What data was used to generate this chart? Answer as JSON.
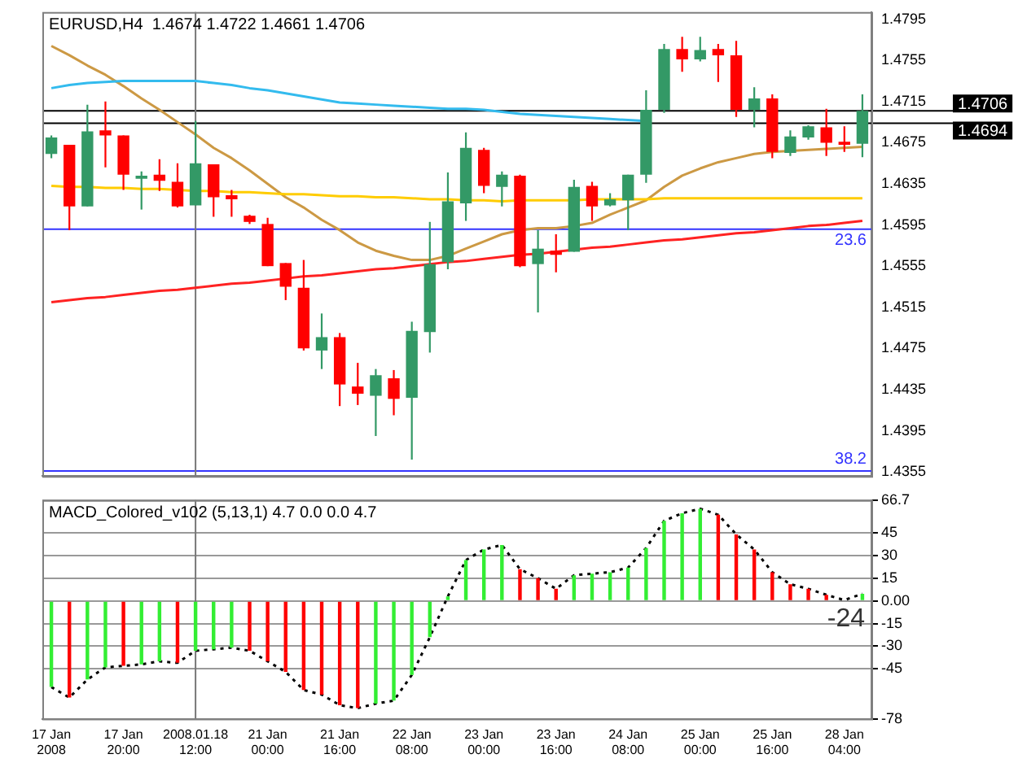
{
  "chart_data": [
    {
      "type": "candlestick",
      "title": "EURUSD,H4  1.4674 1.4722 1.4661 1.4706",
      "categories": [
        "17 Jan 2008",
        null,
        null,
        null,
        "17 Jan 20:00",
        null,
        null,
        null,
        "2008.01.18 12:00",
        null,
        null,
        null,
        "21 Jan 00:00",
        null,
        null,
        null,
        "21 Jan 16:00",
        null,
        null,
        null,
        "22 Jan 08:00",
        null,
        null,
        null,
        "23 Jan 00:00",
        null,
        null,
        null,
        "23 Jan 16:00",
        null,
        null,
        null,
        "24 Jan 08:00",
        null,
        null,
        null,
        "25 Jan 00:00",
        null,
        null,
        null,
        "25 Jan 16:00",
        null,
        null,
        null,
        "28 Jan 04:00",
        null
      ],
      "ohlc": [
        [
          1.4664,
          1.4682,
          1.466,
          1.468
        ],
        [
          1.4673,
          1.4673,
          1.459,
          1.4613
        ],
        [
          1.4613,
          1.4712,
          1.4613,
          1.4686
        ],
        [
          1.4687,
          1.4715,
          1.4651,
          1.4682
        ],
        [
          1.4682,
          1.4682,
          1.4629,
          1.4644
        ],
        [
          1.464,
          1.4647,
          1.461,
          1.4643
        ],
        [
          1.4644,
          1.4659,
          1.4628,
          1.4638
        ],
        [
          1.4637,
          1.4655,
          1.4612,
          1.4613
        ],
        [
          1.4614,
          1.4696,
          1.4614,
          1.4655
        ],
        [
          1.4654,
          1.4654,
          1.4603,
          1.4622
        ],
        [
          1.4624,
          1.4629,
          1.4603,
          1.462
        ],
        [
          1.4604,
          1.4605,
          1.4596,
          1.4598
        ],
        [
          1.4596,
          1.4602,
          1.4555,
          1.4555
        ],
        [
          1.4558,
          1.4558,
          1.4522,
          1.4535
        ],
        [
          1.4534,
          1.4561,
          1.4473,
          1.4475
        ],
        [
          1.4473,
          1.4509,
          1.4455,
          1.4486
        ],
        [
          1.4486,
          1.449,
          1.4419,
          1.444
        ],
        [
          1.4438,
          1.4461,
          1.442,
          1.4431
        ],
        [
          1.4429,
          1.4455,
          1.439,
          1.4449
        ],
        [
          1.4446,
          1.4454,
          1.441,
          1.4426
        ],
        [
          1.4427,
          1.4501,
          1.4367,
          1.4492
        ],
        [
          1.4491,
          1.4598,
          1.4471,
          1.4557
        ],
        [
          1.4559,
          1.4646,
          1.4552,
          1.4618
        ],
        [
          1.4616,
          1.4685,
          1.4599,
          1.467
        ],
        [
          1.4668,
          1.467,
          1.4626,
          1.4633
        ],
        [
          1.4632,
          1.4647,
          1.4613,
          1.4644
        ],
        [
          1.4643,
          1.4644,
          1.4554,
          1.4555
        ],
        [
          1.4557,
          1.459,
          1.451,
          1.4572
        ],
        [
          1.457,
          1.4586,
          1.4549,
          1.4566
        ],
        [
          1.4569,
          1.4639,
          1.4569,
          1.4632
        ],
        [
          1.4633,
          1.4637,
          1.4599,
          1.4613
        ],
        [
          1.4614,
          1.4626,
          1.4613,
          1.462
        ],
        [
          1.4619,
          1.4644,
          1.459,
          1.4644
        ],
        [
          1.4644,
          1.4726,
          1.4636,
          1.4707
        ],
        [
          1.4707,
          1.4771,
          1.4704,
          1.4766
        ],
        [
          1.4766,
          1.4778,
          1.4744,
          1.4756
        ],
        [
          1.4756,
          1.4778,
          1.4754,
          1.4765
        ],
        [
          1.4766,
          1.4771,
          1.4734,
          1.476
        ],
        [
          1.476,
          1.4774,
          1.47,
          1.4707
        ],
        [
          1.4707,
          1.4729,
          1.469,
          1.4718
        ],
        [
          1.4718,
          1.4722,
          1.466,
          1.4666
        ],
        [
          1.4665,
          1.4687,
          1.4662,
          1.4681
        ],
        [
          1.468,
          1.4692,
          1.4678,
          1.4691
        ],
        [
          1.469,
          1.4708,
          1.4662,
          1.4675
        ],
        [
          1.4676,
          1.4691,
          1.4666,
          1.4673
        ],
        [
          1.4674,
          1.4722,
          1.4661,
          1.4706
        ]
      ],
      "colors": [
        "#339966",
        "#ff0000",
        "#339966",
        "#ff0000",
        "#ff0000",
        "#339966",
        "#ff0000",
        "#ff0000",
        "#339966",
        "#ff0000",
        "#ff0000",
        "#ff0000",
        "#ff0000",
        "#ff0000",
        "#ff0000",
        "#339966",
        "#ff0000",
        "#ff0000",
        "#339966",
        "#ff0000",
        "#339966",
        "#339966",
        "#339966",
        "#339966",
        "#ff0000",
        "#339966",
        "#ff0000",
        "#339966",
        "#ff0000",
        "#339966",
        "#ff0000",
        "#339966",
        "#339966",
        "#339966",
        "#339966",
        "#ff0000",
        "#339966",
        "#ff0000",
        "#ff0000",
        "#339966",
        "#ff0000",
        "#339966",
        "#339966",
        "#ff0000",
        "#ff0000",
        "#339966"
      ],
      "series": [
        {
          "type": "line",
          "color": "#ffcc00",
          "values": [
            1.4633,
            1.4632,
            1.4632,
            1.4631,
            1.4631,
            1.463,
            1.463,
            1.4629,
            1.4628,
            1.4628,
            1.4627,
            1.4627,
            1.4626,
            1.4625,
            1.4625,
            1.4624,
            1.4623,
            1.4623,
            1.4622,
            1.4622,
            1.4621,
            1.462,
            1.462,
            1.4619,
            1.4619,
            1.4618,
            1.4619,
            1.4619,
            1.4619,
            1.4619,
            1.462,
            1.462,
            1.462,
            1.462,
            1.4621,
            1.4621,
            1.4621,
            1.4621,
            1.4621,
            1.4621,
            1.4621,
            1.4621,
            1.4621,
            1.4621,
            1.4621,
            1.4621
          ]
        },
        {
          "type": "line",
          "color": "#33bbee",
          "values": [
            1.4728,
            1.4731,
            1.4733,
            1.4734,
            1.4735,
            1.4735,
            1.4735,
            1.4735,
            1.4735,
            1.4733,
            1.4731,
            1.4728,
            1.4726,
            1.4723,
            1.472,
            1.4717,
            1.4714,
            1.4713,
            1.4712,
            1.4711,
            1.471,
            1.4709,
            1.4708,
            1.4708,
            1.4707,
            1.4705,
            1.4703,
            1.4702,
            1.4701,
            1.47,
            1.4699,
            1.4698,
            1.4697,
            1.4696,
            null,
            null,
            null,
            null,
            null,
            null,
            null,
            null,
            null,
            null,
            null,
            null
          ]
        },
        {
          "type": "line",
          "color": "#cc9944",
          "values": [
            1.4769,
            1.476,
            1.475,
            1.4741,
            1.473,
            1.4718,
            1.4707,
            1.4695,
            1.4683,
            1.467,
            1.466,
            1.4648,
            1.4635,
            1.4622,
            1.4612,
            1.46,
            1.459,
            1.4578,
            1.457,
            1.4565,
            1.4561,
            1.4561,
            1.4565,
            1.4572,
            1.4579,
            1.4586,
            1.459,
            1.4592,
            1.4592,
            1.4594,
            1.4597,
            1.4605,
            1.4612,
            1.4619,
            1.4632,
            1.4643,
            1.465,
            1.4656,
            1.466,
            1.4664,
            1.4666,
            1.4667,
            1.4668,
            1.4669,
            1.467,
            1.4671
          ]
        },
        {
          "type": "line",
          "color": "#ff2222",
          "values": [
            1.452,
            1.4522,
            1.4524,
            1.4525,
            1.4527,
            1.4529,
            1.4531,
            1.4532,
            1.4534,
            1.4536,
            1.4538,
            1.4539,
            1.4541,
            1.4543,
            1.4545,
            1.4546,
            1.4548,
            1.455,
            1.4552,
            1.4553,
            1.4555,
            1.4557,
            1.4559,
            1.456,
            1.4562,
            1.4564,
            1.4566,
            1.4567,
            1.4569,
            1.4571,
            1.4573,
            1.4574,
            1.4576,
            1.4578,
            1.458,
            1.4581,
            1.4583,
            1.4585,
            1.4587,
            1.4588,
            1.459,
            1.4592,
            1.4594,
            1.4595,
            1.4597,
            1.4599
          ]
        }
      ],
      "ylim": [
        1.4351,
        1.4802
      ],
      "yticks": [
        1.4355,
        1.4395,
        1.4435,
        1.4475,
        1.4515,
        1.4555,
        1.4595,
        1.4635,
        1.4675,
        1.4715,
        1.4755,
        1.4795
      ],
      "ref_lines": [
        {
          "axis": "y",
          "value": 1.4706,
          "label": "1.4706",
          "color": "#000000"
        },
        {
          "axis": "y",
          "value": 1.4694,
          "label": "1.4694",
          "color": "#000000"
        },
        {
          "axis": "y",
          "value": 1.4591,
          "color": "#3333ff"
        },
        {
          "axis": "y",
          "value": 1.4356,
          "color": "#3333ff"
        },
        {
          "axis": "x",
          "value": "2008.01.18 12:00",
          "color": "#777777"
        }
      ],
      "annotations": [
        {
          "text": "23.6",
          "y": 1.4591
        },
        {
          "text": "38.2",
          "y": 1.4356
        }
      ],
      "tick_labels": "y",
      "legend": false,
      "grid": false
    },
    {
      "type": "bar",
      "title": "MACD_Colored_v102 (5,13,1) 4.7 0.0 0.0 4.7",
      "categories": [
        "17 Jan 2008",
        null,
        null,
        null,
        "17 Jan 20:00",
        null,
        null,
        null,
        "2008.01.18 12:00",
        null,
        null,
        null,
        "21 Jan 00:00",
        null,
        null,
        null,
        "21 Jan 16:00",
        null,
        null,
        null,
        "22 Jan 08:00",
        null,
        null,
        null,
        "23 Jan 00:00",
        null,
        null,
        null,
        "23 Jan 16:00",
        null,
        null,
        null,
        "24 Jan 08:00",
        null,
        null,
        null,
        "25 Jan 00:00",
        null,
        null,
        null,
        "25 Jan 16:00",
        null,
        null,
        null,
        "28 Jan 04:00",
        null
      ],
      "series": [
        {
          "type": "bar",
          "colors": [
            "#33ee33",
            "#ff0000",
            "#33ee33",
            "#33ee33",
            "#ff0000",
            "#33ee33",
            "#33ee33",
            "#ff0000",
            "#33ee33",
            "#33ee33",
            "#33ee33",
            "#ff0000",
            "#ff0000",
            "#ff0000",
            "#ff0000",
            "#ff0000",
            "#ff0000",
            "#ff0000",
            "#33ee33",
            "#33ee33",
            "#33ee33",
            "#33ee33",
            "#33ee33",
            "#33ee33",
            "#33ee33",
            "#33ee33",
            "#ff0000",
            "#ff0000",
            "#ff0000",
            "#33ee33",
            "#33ee33",
            "#33ee33",
            "#33ee33",
            "#33ee33",
            "#33ee33",
            "#33ee33",
            "#33ee33",
            "#ff0000",
            "#ff0000",
            "#ff0000",
            "#ff0000",
            "#ff0000",
            "#ff0000",
            "#ff0000",
            "#ff0000",
            "#33ee33"
          ],
          "values": [
            -57,
            -64,
            -52,
            -44,
            -43,
            -42,
            -40,
            -41,
            -33,
            -32,
            -31,
            -33,
            -40,
            -47,
            -59,
            -62,
            -69,
            -71,
            -68,
            -66,
            -49,
            -24,
            3,
            27,
            34,
            37,
            21,
            15,
            8,
            17,
            18,
            19,
            22,
            35,
            53,
            58,
            61,
            57,
            44,
            34,
            19,
            11,
            8,
            4,
            null,
            4.7
          ]
        },
        {
          "type": "line",
          "color": "#000000",
          "line_style": "dotted",
          "values": [
            -57,
            -64,
            -52,
            -44,
            -43,
            -42,
            -40,
            -41,
            -33,
            -32,
            -31,
            -33,
            -40,
            -47,
            -59,
            -62,
            -69,
            -71,
            -68,
            -66,
            -49,
            -24,
            3,
            27,
            34,
            37,
            21,
            15,
            8,
            17,
            18,
            19,
            22,
            35,
            53,
            58,
            61,
            57,
            44,
            34,
            19,
            11,
            8,
            4,
            0.5,
            4.7
          ]
        }
      ],
      "ylim": [
        -78,
        66.7
      ],
      "yticks": [
        -78,
        -45,
        -30,
        -15,
        {
          "value": 0,
          "label": "0.00"
        },
        15,
        30,
        45,
        66.7
      ],
      "ref_lines": [
        {
          "axis": "x",
          "value": "2008.01.18 12:00",
          "color": "#777777"
        }
      ],
      "annotations": [
        "-24"
      ],
      "grid": "y",
      "legend": false
    }
  ]
}
